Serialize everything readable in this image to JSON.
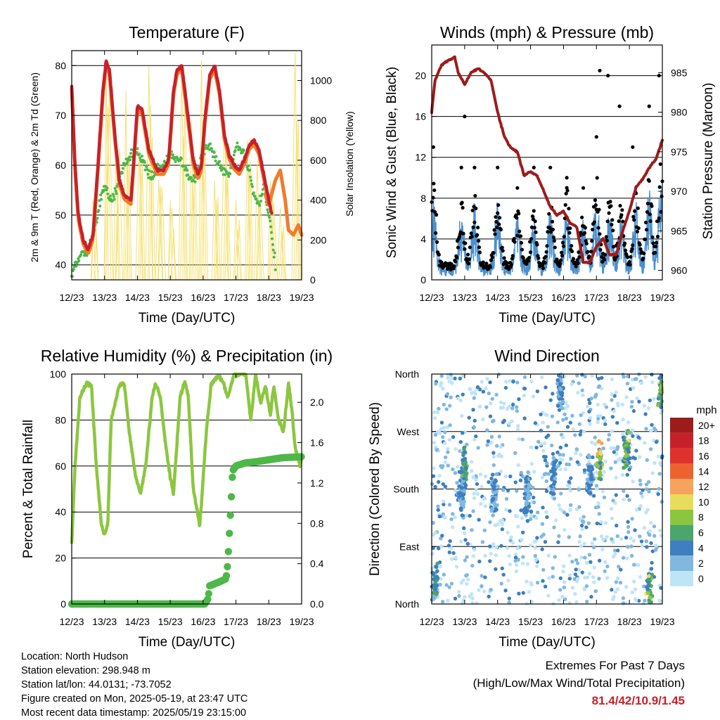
{
  "chart_data": [
    {
      "type": "line",
      "title": "Temperature (F)",
      "xlabel": "Time (Day/UTC)",
      "ylabel": "2m & 9m T (Red, Orange) & 2m Td (Green)",
      "y2label": "Solar Insolation (Yellow)",
      "x_ticks": [
        "12/23",
        "13/23",
        "14/23",
        "15/23",
        "16/23",
        "17/23",
        "18/23",
        "19/23"
      ],
      "y_ticks": [
        40,
        50,
        60,
        70,
        80
      ],
      "y2_ticks": [
        0,
        200,
        400,
        600,
        800,
        1000
      ],
      "ylim": [
        37,
        83
      ],
      "y2lim": [
        0,
        1150
      ],
      "xlim": [
        0,
        7
      ],
      "grid": "horizontal",
      "series": [
        {
          "label": "2m T",
          "color": "#c8202a",
          "x": [
            0,
            0.1,
            0.2,
            0.35,
            0.5,
            0.65,
            0.8,
            0.95,
            1.05,
            1.15,
            1.3,
            1.45,
            1.6,
            1.8,
            1.9,
            2.0,
            2.15,
            2.35,
            2.6,
            2.8,
            2.95,
            3.1,
            3.2,
            3.35,
            3.5,
            3.7,
            3.85,
            3.95,
            4.05,
            4.2,
            4.35,
            4.5,
            4.65,
            4.8,
            4.95,
            5.1,
            5.25,
            5.4,
            5.55,
            5.7,
            5.85,
            6.0,
            6.1
          ],
          "y": [
            76,
            60,
            50,
            45,
            43,
            46,
            60,
            75,
            81,
            79,
            67,
            57,
            54,
            53,
            62,
            72,
            71,
            63,
            59,
            59,
            61,
            75,
            79,
            80,
            72,
            61,
            58,
            60,
            69,
            78,
            80,
            75,
            66,
            62,
            60,
            59,
            61,
            64,
            65,
            63,
            58,
            53,
            50
          ]
        },
        {
          "label": "9m T",
          "color": "#f07c2a",
          "x": [
            5.9,
            6.0,
            6.2,
            6.35,
            6.5,
            6.6,
            6.75,
            6.9,
            7.0
          ],
          "y": [
            54,
            52,
            57,
            59,
            53,
            47,
            46,
            48,
            46
          ]
        },
        {
          "label": "2m Td",
          "color": "#4db848",
          "x": [
            0,
            0.1,
            0.3,
            0.5,
            0.7,
            0.9,
            1.0,
            1.2,
            1.35,
            1.6,
            1.8,
            2.0,
            2.2,
            2.4,
            2.6,
            2.8,
            3.0,
            3.2,
            3.4,
            3.6,
            3.8,
            4.0,
            4.2,
            4.4,
            4.6,
            4.8,
            5.0,
            5.2,
            5.4,
            5.55,
            5.7,
            5.85,
            6.0,
            6.2
          ],
          "y": [
            38,
            40,
            42,
            43,
            47,
            54,
            56,
            53,
            55,
            60,
            62,
            63,
            60,
            58,
            59,
            60,
            62,
            61,
            60,
            57,
            58,
            63,
            64,
            61,
            59,
            58,
            64,
            63,
            59,
            54,
            52,
            56,
            50,
            40
          ]
        },
        {
          "label": "Solar Insolation",
          "color": "#f5e170",
          "axis": "y2",
          "peaks_x": [
            0.7,
            1.1,
            1.4,
            1.7,
            2.1,
            2.4,
            2.7,
            3.05,
            3.4,
            3.7,
            4.0,
            4.4,
            4.7,
            5.05,
            5.4,
            5.7,
            6.1,
            6.4,
            6.85
          ],
          "peaks_y": [
            400,
            1080,
            700,
            950,
            650,
            1070,
            500,
            400,
            1050,
            800,
            1100,
            500,
            800,
            400,
            700,
            600,
            500,
            360,
            1140
          ]
        }
      ]
    },
    {
      "type": "scatter",
      "title": "Winds (mph) & Pressure (mb)",
      "xlabel": "Time (Day/UTC)",
      "ylabel": "Sonic Wind & Gust (Blue, Black)",
      "y2label": "Station Pressure (Maroon)",
      "x_ticks": [
        "12/23",
        "13/23",
        "14/23",
        "15/23",
        "16/23",
        "17/23",
        "18/23",
        "19/23"
      ],
      "y_ticks": [
        0,
        4,
        8,
        12,
        16,
        20
      ],
      "y2_ticks": [
        960,
        965,
        970,
        975,
        980,
        985
      ],
      "ylim": [
        0,
        23
      ],
      "y2lim": [
        958.8,
        988.5
      ],
      "xlim": [
        0,
        7
      ],
      "grid": "horizontal",
      "series": [
        {
          "label": "Station Pressure",
          "color": "#9c1c1c",
          "axis": "y2",
          "x": [
            0,
            0.1,
            0.3,
            0.5,
            0.7,
            0.8,
            1.0,
            1.2,
            1.4,
            1.6,
            1.8,
            2.0,
            2.2,
            2.4,
            2.6,
            2.8,
            3.0,
            3.2,
            3.4,
            3.6,
            3.8,
            4.0,
            4.2,
            4.4,
            4.6,
            4.8,
            5.0,
            5.2,
            5.4,
            5.6,
            5.8,
            6.0,
            6.2,
            6.4,
            6.6,
            6.8,
            7.0
          ],
          "y": [
            980,
            984,
            986,
            986.5,
            987,
            985,
            983.5,
            985,
            985.5,
            985,
            984,
            980,
            977,
            975.5,
            975,
            972,
            972.5,
            972,
            970,
            968,
            967,
            967.5,
            966,
            965.5,
            961,
            961,
            963,
            964,
            962,
            962,
            965,
            967.5,
            970.5,
            971.5,
            973,
            974,
            976.5
          ]
        },
        {
          "label": "Sonic Wind",
          "color": "#4a90cc",
          "peaks_x": [
            0.05,
            0.9,
            1.3,
            2.0,
            2.6,
            3.1,
            3.6,
            4.1,
            4.6,
            5.0,
            5.4,
            5.75,
            6.2,
            6.6,
            6.95
          ],
          "peaks_y": [
            8.5,
            6.5,
            7.5,
            7.5,
            6,
            6,
            6.5,
            7.5,
            5.5,
            9,
            7,
            6.5,
            7.5,
            9,
            10
          ]
        },
        {
          "label": "Gust",
          "color": "#000000",
          "peaks_x": [
            0.05,
            0.9,
            1.0,
            1.3,
            2.0,
            2.6,
            3.1,
            3.6,
            4.1,
            4.6,
            5.0,
            5.1,
            5.35,
            5.7,
            6.1,
            6.6,
            6.9
          ],
          "peaks_y": [
            13,
            11,
            16,
            11,
            11,
            9,
            11,
            11,
            10,
            9,
            14,
            20.5,
            20,
            17,
            13,
            17,
            20
          ]
        }
      ]
    },
    {
      "type": "line",
      "title": "Relative Humidity (%) & Precipitation (in)",
      "xlabel": "Time (Day/UTC)",
      "ylabel": "Percent & Total Rainfall",
      "x_ticks": [
        "12/23",
        "13/23",
        "14/23",
        "15/23",
        "16/23",
        "17/23",
        "18/23",
        "19/23"
      ],
      "y_ticks": [
        0,
        20,
        40,
        60,
        80,
        100
      ],
      "y2_ticks": [
        0.0,
        0.4,
        0.8,
        1.2,
        1.6,
        2.0
      ],
      "ylim": [
        0,
        100
      ],
      "y2lim": [
        0,
        2.28
      ],
      "xlim": [
        0,
        7
      ],
      "grid": "horizontal",
      "series": [
        {
          "label": "Relative Humidity",
          "color": "#8cc63f",
          "x": [
            0,
            0.1,
            0.25,
            0.45,
            0.6,
            0.75,
            0.9,
            1.0,
            1.1,
            1.2,
            1.45,
            1.6,
            1.75,
            1.95,
            2.1,
            2.25,
            2.45,
            2.55,
            2.7,
            2.85,
            3.0,
            3.1,
            3.3,
            3.45,
            3.55,
            3.7,
            3.9,
            4.1,
            4.25,
            4.45,
            4.6,
            4.75,
            4.95,
            5.1,
            5.3,
            5.45,
            5.6,
            5.75,
            5.9,
            6.05,
            6.15,
            6.3,
            6.45,
            6.6,
            6.7,
            6.8,
            6.95,
            7.0
          ],
          "y": [
            26,
            60,
            90,
            96,
            95,
            60,
            35,
            30,
            35,
            80,
            95,
            96,
            75,
            55,
            48,
            60,
            90,
            96,
            90,
            70,
            55,
            48,
            90,
            97,
            90,
            50,
            34,
            75,
            96,
            99,
            97,
            90,
            100,
            100,
            100,
            80,
            100,
            87,
            95,
            82,
            95,
            80,
            75,
            96,
            85,
            68,
            60,
            64
          ]
        },
        {
          "label": "Total Rainfall",
          "color": "#4db848",
          "axis": "y2",
          "x": [
            0,
            4.05,
            4.15,
            4.2,
            4.5,
            4.7,
            4.75,
            4.8,
            4.85,
            4.9,
            5.0,
            5.3,
            5.6,
            6.0,
            6.4,
            7.0
          ],
          "y": [
            0,
            0,
            0.05,
            0.18,
            0.22,
            0.25,
            0.4,
            0.7,
            1.0,
            1.32,
            1.37,
            1.4,
            1.41,
            1.43,
            1.45,
            1.46
          ]
        }
      ]
    },
    {
      "type": "scatter",
      "title": "Wind Direction",
      "xlabel": "Time (Day/UTC)",
      "ylabel": "Direction (Colored By Speed)",
      "x_ticks": [
        "12/23",
        "13/23",
        "14/23",
        "15/23",
        "16/23",
        "17/23",
        "18/23",
        "19/23"
      ],
      "y_ticks": [
        "North",
        "East",
        "South",
        "West",
        "North"
      ],
      "ylim": [
        0,
        360
      ],
      "xlim": [
        0,
        7
      ],
      "grid": "horizontal",
      "colorbar": {
        "title": "mph",
        "labels": [
          "20+",
          "18",
          "16",
          "14",
          "12",
          "10",
          "8",
          "6",
          "4",
          "2",
          "0"
        ],
        "colors": [
          "#9c1b1b",
          "#c8202a",
          "#e0322c",
          "#ee6230",
          "#f7a35c",
          "#e8dd5a",
          "#8cc63f",
          "#4aa66a",
          "#3d7fbf",
          "#80b8e0",
          "#bfe4f7"
        ]
      },
      "clusters": [
        {
          "x": 0.1,
          "dir": 30,
          "speed": 6
        },
        {
          "x": 0.9,
          "dir": 170,
          "speed": 4
        },
        {
          "x": 1.0,
          "dir": 210,
          "speed": 6
        },
        {
          "x": 1.9,
          "dir": 170,
          "speed": 4
        },
        {
          "x": 2.9,
          "dir": 170,
          "speed": 4
        },
        {
          "x": 3.7,
          "dir": 200,
          "speed": 4
        },
        {
          "x": 3.9,
          "dir": 340,
          "speed": 4
        },
        {
          "x": 4.8,
          "dir": 200,
          "speed": 4
        },
        {
          "x": 5.1,
          "dir": 220,
          "speed": 10
        },
        {
          "x": 5.9,
          "dir": 240,
          "speed": 8
        },
        {
          "x": 6.6,
          "dir": 30,
          "speed": 8
        },
        {
          "x": 6.95,
          "dir": 340,
          "speed": 8
        }
      ]
    }
  ],
  "info": {
    "location": "Location: North Hudson",
    "elevation": "Station elevation: 298.948 m",
    "latlon": "Station lat/lon: 44.0131; -73.7052",
    "created": "Figure created on Mon, 2025-05-19, at 23:47 UTC",
    "recent": "Most recent data timestamp: 2025/05/19 23:15:00"
  },
  "extremes": {
    "title": "Extremes For Past 7 Days",
    "subtitle": "(High/Low/Max Wind/Total Precipitation)",
    "values": "81.4/42/10.9/1.45"
  }
}
